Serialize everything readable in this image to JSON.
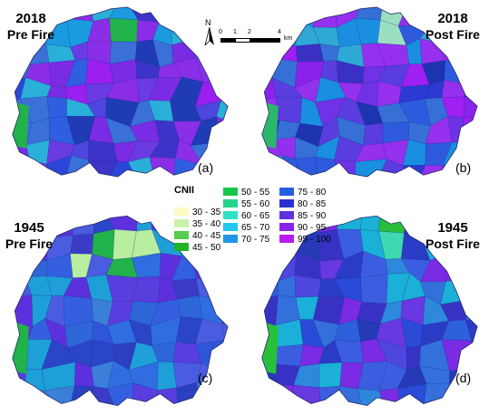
{
  "panels": [
    {
      "id": "a",
      "year": "2018",
      "fire": "Pre Fire",
      "label": "(a)",
      "palette": [
        "#2a47d9",
        "#4f45df",
        "#7a2be4",
        "#9a1ff0",
        "#2f5fe0",
        "#3e33c8",
        "#1f3bb5",
        "#6a3be2",
        "#1a9be0",
        "#2ab0d8",
        "#22b24a",
        "#c9f2b0",
        "#3a70d8",
        "#8a2ee8"
      ]
    },
    {
      "id": "b",
      "year": "2018",
      "fire": "Post Fire",
      "label": "(b)",
      "palette": [
        "#2a3ad2",
        "#5a3ddf",
        "#8a22ec",
        "#a01ff2",
        "#2e5ade",
        "#3b30c4",
        "#1c34b0",
        "#7032e6",
        "#1a8fe0",
        "#2ea8d5",
        "#2bb86a",
        "#9adfc0",
        "#3670d6",
        "#9530ee"
      ]
    },
    {
      "id": "c",
      "year": "1945",
      "fire": "Pre Fire",
      "label": "(c)",
      "palette": [
        "#2f55d8",
        "#3460e0",
        "#2a45c8",
        "#4a5ce0",
        "#2e66d8",
        "#3a3cc6",
        "#2a40c0",
        "#5a3ddf",
        "#3a7fd8",
        "#1e9fd8",
        "#22b24a",
        "#b8eea0",
        "#2e6ee0",
        "#5d30dd"
      ]
    },
    {
      "id": "d",
      "year": "1945",
      "fire": "Post Fire",
      "label": "(d)",
      "palette": [
        "#2a4ad8",
        "#3b5ee0",
        "#2a3cc6",
        "#4f45df",
        "#2e60dc",
        "#3832c4",
        "#263ab8",
        "#6838e0",
        "#2e88dc",
        "#1ab0d8",
        "#28c03a",
        "#40d8b0",
        "#3470dc",
        "#7a2be4"
      ]
    }
  ],
  "legend": {
    "title": "CNII",
    "items": [
      {
        "range": "30 - 35",
        "color": "#fbfbc4"
      },
      {
        "range": "35 - 40",
        "color": "#c9f2a8"
      },
      {
        "range": "40 - 45",
        "color": "#56cc4f"
      },
      {
        "range": "45 - 50",
        "color": "#22b424"
      },
      {
        "range": "50 - 55",
        "color": "#14c84a"
      },
      {
        "range": "55 - 60",
        "color": "#24d48c"
      },
      {
        "range": "60 - 65",
        "color": "#30e0c4"
      },
      {
        "range": "65 - 70",
        "color": "#22c8f0"
      },
      {
        "range": "70 - 75",
        "color": "#1e96e6"
      },
      {
        "range": "75 - 80",
        "color": "#2560e0"
      },
      {
        "range": "80 - 85",
        "color": "#2a30d0"
      },
      {
        "range": "85 - 90",
        "color": "#5e30de"
      },
      {
        "range": "90 - 95",
        "color": "#8a22ea"
      },
      {
        "range": "95 - 100",
        "color": "#b81cf2"
      }
    ]
  },
  "north_arrow": {
    "letter": "N"
  },
  "scale_bar": {
    "ticks": [
      "0",
      "1",
      "2",
      "4"
    ],
    "unit": "km"
  }
}
